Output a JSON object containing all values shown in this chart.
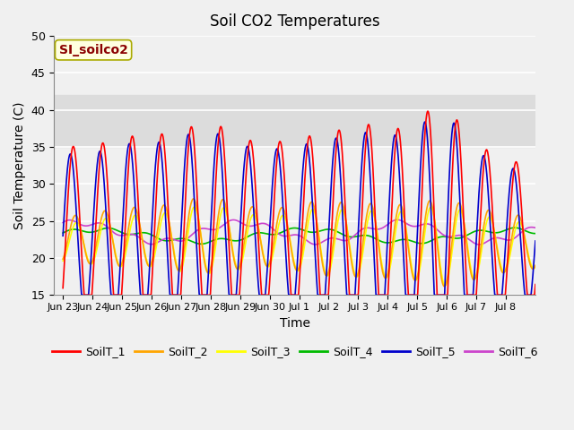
{
  "title": "Soil CO2 Temperatures",
  "xlabel": "Time",
  "ylabel": "Soil Temperature (C)",
  "ylim": [
    15,
    50
  ],
  "annotation_text": "SI_soilco2",
  "annotation_color": "#8B0000",
  "annotation_bg": "#FFFFE0",
  "shaded_region": [
    35,
    42
  ],
  "shaded_color": "#DCDCDC",
  "series_colors": {
    "SoilT_1": "#FF0000",
    "SoilT_2": "#FFA500",
    "SoilT_3": "#FFFF00",
    "SoilT_4": "#00BB00",
    "SoilT_5": "#0000CC",
    "SoilT_6": "#CC44CC"
  },
  "tick_labels": [
    "Jun 23",
    "Jun 24",
    "Jun 25",
    "Jun 26",
    "Jun 27",
    "Jun 28",
    "Jun 29",
    "Jun 30",
    "Jul 1",
    "Jul 2",
    "Jul 3",
    "Jul 4",
    "Jul 5",
    "Jul 6",
    "Jul 7",
    "Jul 8"
  ],
  "background_color": "#F0F0F0",
  "grid_color": "#FFFFFF",
  "line_width": 1.2,
  "figsize": [
    6.4,
    4.8
  ],
  "dpi": 100
}
